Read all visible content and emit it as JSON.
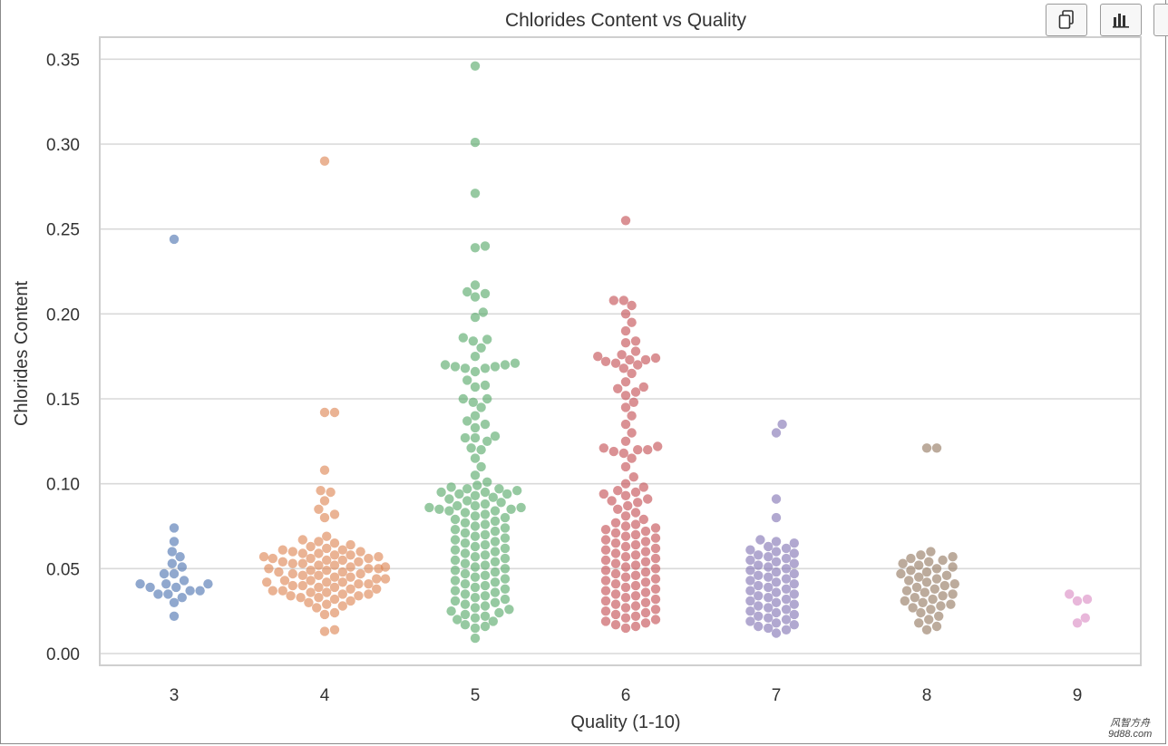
{
  "toolbar": {
    "copy_icon": "copy-icon",
    "chart_icon": "bar-chart-icon"
  },
  "watermark": {
    "line1": "风智方舟",
    "line2": "9d88.com"
  },
  "chart_data": {
    "type": "scatter",
    "subtype": "swarm",
    "title": "Chlorides Content vs Quality",
    "xlabel": "Quality (1-10)",
    "ylabel": "Chlorides Content",
    "categories": [
      "3",
      "4",
      "5",
      "6",
      "7",
      "8",
      "9"
    ],
    "yticks": [
      "0.00",
      "0.05",
      "0.10",
      "0.15",
      "0.20",
      "0.25",
      "0.30",
      "0.35"
    ],
    "ylim": [
      -0.008,
      0.36
    ],
    "grid": true,
    "series": [
      {
        "name": "3",
        "color": "#4c72b0",
        "values": [
          0.244,
          0.074,
          0.066,
          0.06,
          0.057,
          0.053,
          0.051,
          0.047,
          0.047,
          0.043,
          0.041,
          0.041,
          0.041,
          0.039,
          0.039,
          0.037,
          0.037,
          0.035,
          0.035,
          0.033,
          0.03,
          0.022
        ]
      },
      {
        "name": "4",
        "color": "#dd8452",
        "values": [
          0.29,
          0.142,
          0.142,
          0.108,
          0.096,
          0.095,
          0.09,
          0.085,
          0.082,
          0.08,
          0.069,
          0.067,
          0.066,
          0.065,
          0.064,
          0.063,
          0.062,
          0.061,
          0.061,
          0.06,
          0.06,
          0.059,
          0.059,
          0.058,
          0.058,
          0.057,
          0.057,
          0.056,
          0.056,
          0.056,
          0.055,
          0.055,
          0.054,
          0.054,
          0.053,
          0.053,
          0.052,
          0.052,
          0.051,
          0.051,
          0.05,
          0.05,
          0.05,
          0.049,
          0.049,
          0.048,
          0.048,
          0.047,
          0.047,
          0.046,
          0.046,
          0.045,
          0.045,
          0.044,
          0.044,
          0.043,
          0.043,
          0.042,
          0.042,
          0.042,
          0.041,
          0.041,
          0.04,
          0.04,
          0.039,
          0.039,
          0.038,
          0.038,
          0.037,
          0.037,
          0.036,
          0.036,
          0.035,
          0.035,
          0.034,
          0.034,
          0.033,
          0.033,
          0.032,
          0.031,
          0.03,
          0.029,
          0.028,
          0.027,
          0.024,
          0.023,
          0.014,
          0.013
        ]
      },
      {
        "name": "5",
        "color": "#55a868",
        "values": [
          0.346,
          0.301,
          0.271,
          0.24,
          0.239,
          0.217,
          0.213,
          0.212,
          0.21,
          0.201,
          0.198,
          0.186,
          0.185,
          0.184,
          0.18,
          0.175,
          0.171,
          0.17,
          0.17,
          0.169,
          0.169,
          0.168,
          0.168,
          0.166,
          0.161,
          0.158,
          0.157,
          0.15,
          0.15,
          0.148,
          0.145,
          0.14,
          0.137,
          0.135,
          0.133,
          0.128,
          0.127,
          0.127,
          0.125,
          0.121,
          0.12,
          0.115,
          0.11,
          0.105,
          0.101,
          0.099,
          0.098,
          0.097,
          0.097,
          0.096,
          0.095,
          0.095,
          0.094,
          0.094,
          0.093,
          0.092,
          0.091,
          0.09,
          0.089,
          0.088,
          0.087,
          0.087,
          0.086,
          0.086,
          0.085,
          0.085,
          0.084,
          0.084,
          0.083,
          0.082,
          0.081,
          0.08,
          0.079,
          0.078,
          0.077,
          0.076,
          0.075,
          0.074,
          0.073,
          0.072,
          0.071,
          0.07,
          0.069,
          0.068,
          0.067,
          0.066,
          0.065,
          0.064,
          0.063,
          0.062,
          0.061,
          0.06,
          0.059,
          0.058,
          0.057,
          0.056,
          0.055,
          0.054,
          0.053,
          0.052,
          0.051,
          0.05,
          0.049,
          0.048,
          0.047,
          0.046,
          0.045,
          0.044,
          0.043,
          0.042,
          0.041,
          0.04,
          0.039,
          0.038,
          0.037,
          0.036,
          0.035,
          0.034,
          0.033,
          0.032,
          0.031,
          0.03,
          0.029,
          0.028,
          0.027,
          0.026,
          0.025,
          0.024,
          0.023,
          0.022,
          0.021,
          0.02,
          0.019,
          0.017,
          0.016,
          0.015,
          0.009
        ]
      },
      {
        "name": "6",
        "color": "#c44e52",
        "values": [
          0.255,
          0.208,
          0.208,
          0.205,
          0.2,
          0.195,
          0.19,
          0.184,
          0.183,
          0.178,
          0.176,
          0.175,
          0.174,
          0.173,
          0.173,
          0.172,
          0.171,
          0.17,
          0.168,
          0.165,
          0.16,
          0.157,
          0.156,
          0.154,
          0.152,
          0.148,
          0.145,
          0.14,
          0.135,
          0.13,
          0.125,
          0.122,
          0.121,
          0.12,
          0.12,
          0.119,
          0.118,
          0.115,
          0.11,
          0.104,
          0.1,
          0.098,
          0.096,
          0.095,
          0.094,
          0.093,
          0.091,
          0.09,
          0.089,
          0.087,
          0.085,
          0.083,
          0.081,
          0.079,
          0.077,
          0.076,
          0.075,
          0.074,
          0.073,
          0.072,
          0.071,
          0.07,
          0.069,
          0.068,
          0.067,
          0.066,
          0.065,
          0.064,
          0.063,
          0.062,
          0.061,
          0.06,
          0.059,
          0.058,
          0.057,
          0.056,
          0.055,
          0.054,
          0.053,
          0.052,
          0.051,
          0.05,
          0.049,
          0.048,
          0.047,
          0.046,
          0.045,
          0.044,
          0.043,
          0.042,
          0.041,
          0.04,
          0.039,
          0.038,
          0.037,
          0.036,
          0.035,
          0.034,
          0.033,
          0.032,
          0.031,
          0.03,
          0.029,
          0.028,
          0.027,
          0.026,
          0.025,
          0.024,
          0.023,
          0.022,
          0.021,
          0.02,
          0.019,
          0.018,
          0.017,
          0.016,
          0.015
        ]
      },
      {
        "name": "7",
        "color": "#8172b3",
        "values": [
          0.135,
          0.13,
          0.091,
          0.08,
          0.067,
          0.066,
          0.065,
          0.063,
          0.062,
          0.061,
          0.06,
          0.059,
          0.058,
          0.057,
          0.056,
          0.055,
          0.054,
          0.053,
          0.052,
          0.051,
          0.05,
          0.049,
          0.048,
          0.047,
          0.046,
          0.045,
          0.044,
          0.043,
          0.042,
          0.041,
          0.04,
          0.039,
          0.038,
          0.037,
          0.036,
          0.035,
          0.034,
          0.033,
          0.032,
          0.031,
          0.03,
          0.029,
          0.028,
          0.027,
          0.026,
          0.025,
          0.024,
          0.023,
          0.022,
          0.021,
          0.02,
          0.019,
          0.018,
          0.017,
          0.016,
          0.015,
          0.014,
          0.012
        ]
      },
      {
        "name": "8",
        "color": "#937860",
        "values": [
          0.121,
          0.121,
          0.06,
          0.058,
          0.057,
          0.056,
          0.055,
          0.054,
          0.053,
          0.052,
          0.051,
          0.05,
          0.049,
          0.048,
          0.047,
          0.046,
          0.045,
          0.044,
          0.043,
          0.042,
          0.041,
          0.04,
          0.039,
          0.038,
          0.037,
          0.036,
          0.035,
          0.034,
          0.033,
          0.032,
          0.031,
          0.03,
          0.029,
          0.028,
          0.027,
          0.026,
          0.024,
          0.022,
          0.02,
          0.018,
          0.016,
          0.014
        ]
      },
      {
        "name": "9",
        "color": "#da8bc3",
        "values": [
          0.035,
          0.032,
          0.031,
          0.021,
          0.018
        ]
      }
    ]
  }
}
